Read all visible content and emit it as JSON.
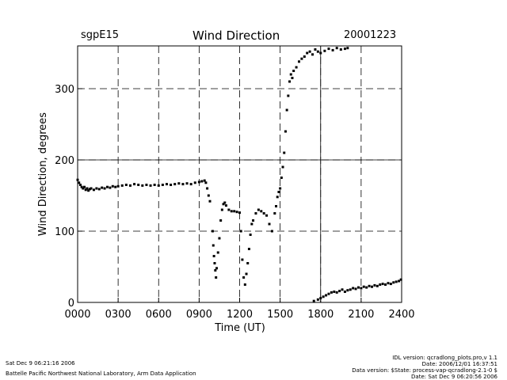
{
  "header": {
    "site": "sgpE15",
    "title": "Wind Direction",
    "date": "20001223"
  },
  "footer": {
    "left_line1": "Sat Dec  9 06:21:16 2006",
    "left_line2": "Battelle Pacific Northwest National Laboratory, Arm Data Application",
    "right_line1": "IDL version: qcradlong_plots.pro,v 1.1",
    "right_line2": "Date: 2006/12/01 16:37:51",
    "right_line3": "Data version: $State: process-vap-qcradlong-2.1-0 $",
    "right_line4": "Date: Sat Dec  9 06:20:56 2006"
  },
  "chart_data": {
    "type": "scatter",
    "title": "Wind Direction",
    "xlabel": "Time (UT)",
    "ylabel": "Wind Direction, degrees",
    "xlim": [
      0,
      24
    ],
    "ylim": [
      0,
      360
    ],
    "x_ticks": [
      0,
      3,
      6,
      9,
      12,
      15,
      18,
      21,
      24
    ],
    "x_tick_labels": [
      "0000",
      "0300",
      "0600",
      "0900",
      "1200",
      "1500",
      "1800",
      "2100",
      "2400"
    ],
    "y_ticks": [
      0,
      100,
      200,
      300
    ],
    "y_tick_labels": [
      "0",
      "100",
      "200",
      "300"
    ],
    "grid": true,
    "series": [
      {
        "points": [
          [
            0.0,
            172
          ],
          [
            0.1,
            168
          ],
          [
            0.2,
            165
          ],
          [
            0.3,
            162
          ],
          [
            0.4,
            160
          ],
          [
            0.5,
            162
          ],
          [
            0.6,
            158
          ],
          [
            0.7,
            160
          ],
          [
            0.8,
            157
          ],
          [
            0.9,
            159
          ],
          [
            1.0,
            160
          ],
          [
            1.2,
            158
          ],
          [
            1.4,
            160
          ],
          [
            1.6,
            159
          ],
          [
            1.8,
            161
          ],
          [
            2.0,
            160
          ],
          [
            2.2,
            162
          ],
          [
            2.4,
            161
          ],
          [
            2.6,
            163
          ],
          [
            2.8,
            162
          ],
          [
            3.0,
            163
          ],
          [
            3.3,
            164
          ],
          [
            3.6,
            165
          ],
          [
            3.9,
            164
          ],
          [
            4.2,
            166
          ],
          [
            4.5,
            165
          ],
          [
            4.8,
            164
          ],
          [
            5.1,
            165
          ],
          [
            5.4,
            164
          ],
          [
            5.7,
            165
          ],
          [
            6.0,
            164
          ],
          [
            6.3,
            165
          ],
          [
            6.6,
            166
          ],
          [
            6.9,
            165
          ],
          [
            7.2,
            166
          ],
          [
            7.5,
            167
          ],
          [
            7.8,
            166
          ],
          [
            8.1,
            167
          ],
          [
            8.4,
            166
          ],
          [
            8.7,
            168
          ],
          [
            9.0,
            169
          ],
          [
            9.2,
            170
          ],
          [
            9.4,
            171
          ],
          [
            9.5,
            168
          ],
          [
            9.6,
            160
          ],
          [
            9.7,
            150
          ],
          [
            9.8,
            142
          ],
          [
            10.0,
            100
          ],
          [
            10.05,
            80
          ],
          [
            10.1,
            65
          ],
          [
            10.15,
            55
          ],
          [
            10.2,
            45
          ],
          [
            10.25,
            35
          ],
          [
            10.3,
            48
          ],
          [
            10.4,
            70
          ],
          [
            10.5,
            90
          ],
          [
            10.6,
            115
          ],
          [
            10.7,
            130
          ],
          [
            10.8,
            138
          ],
          [
            10.9,
            140
          ],
          [
            11.0,
            136
          ],
          [
            11.2,
            130
          ],
          [
            11.4,
            128
          ],
          [
            11.6,
            128
          ],
          [
            11.8,
            127
          ],
          [
            12.0,
            126
          ],
          [
            12.1,
            100
          ],
          [
            12.2,
            60
          ],
          [
            12.3,
            35
          ],
          [
            12.4,
            25
          ],
          [
            12.5,
            40
          ],
          [
            12.6,
            55
          ],
          [
            12.7,
            75
          ],
          [
            12.8,
            95
          ],
          [
            12.9,
            110
          ],
          [
            13.0,
            115
          ],
          [
            13.2,
            125
          ],
          [
            13.4,
            130
          ],
          [
            13.6,
            128
          ],
          [
            13.8,
            125
          ],
          [
            14.0,
            122
          ],
          [
            14.2,
            110
          ],
          [
            14.4,
            100
          ],
          [
            14.6,
            125
          ],
          [
            14.7,
            135
          ],
          [
            14.8,
            148
          ],
          [
            14.9,
            155
          ],
          [
            15.0,
            160
          ],
          [
            15.1,
            175
          ],
          [
            15.2,
            190
          ],
          [
            15.3,
            210
          ],
          [
            15.4,
            240
          ],
          [
            15.5,
            270
          ],
          [
            15.6,
            290
          ],
          [
            15.7,
            310
          ],
          [
            15.8,
            320
          ],
          [
            15.9,
            315
          ],
          [
            16.0,
            325
          ],
          [
            16.2,
            330
          ],
          [
            16.4,
            338
          ],
          [
            16.6,
            342
          ],
          [
            16.8,
            345
          ],
          [
            17.0,
            350
          ],
          [
            17.2,
            352
          ],
          [
            17.4,
            348
          ],
          [
            17.6,
            355
          ],
          [
            17.8,
            352
          ],
          [
            18.0,
            350
          ],
          [
            18.3,
            353
          ],
          [
            18.6,
            356
          ],
          [
            18.9,
            354
          ],
          [
            19.2,
            357
          ],
          [
            19.5,
            355
          ],
          [
            19.8,
            356
          ],
          [
            20.0,
            357
          ],
          [
            17.5,
            2
          ],
          [
            17.8,
            4
          ],
          [
            18.0,
            6
          ],
          [
            18.2,
            8
          ],
          [
            18.4,
            10
          ],
          [
            18.6,
            12
          ],
          [
            18.8,
            14
          ],
          [
            19.0,
            15
          ],
          [
            19.2,
            14
          ],
          [
            19.4,
            16
          ],
          [
            19.6,
            18
          ],
          [
            19.8,
            15
          ],
          [
            20.0,
            17
          ],
          [
            20.2,
            18
          ],
          [
            20.4,
            20
          ],
          [
            20.6,
            19
          ],
          [
            20.8,
            21
          ],
          [
            21.0,
            20
          ],
          [
            21.2,
            22
          ],
          [
            21.4,
            21
          ],
          [
            21.6,
            23
          ],
          [
            21.8,
            22
          ],
          [
            22.0,
            24
          ],
          [
            22.2,
            23
          ],
          [
            22.4,
            25
          ],
          [
            22.6,
            26
          ],
          [
            22.8,
            25
          ],
          [
            23.0,
            27
          ],
          [
            23.2,
            26
          ],
          [
            23.4,
            28
          ],
          [
            23.6,
            29
          ],
          [
            23.8,
            30
          ],
          [
            23.95,
            32
          ]
        ]
      }
    ]
  }
}
